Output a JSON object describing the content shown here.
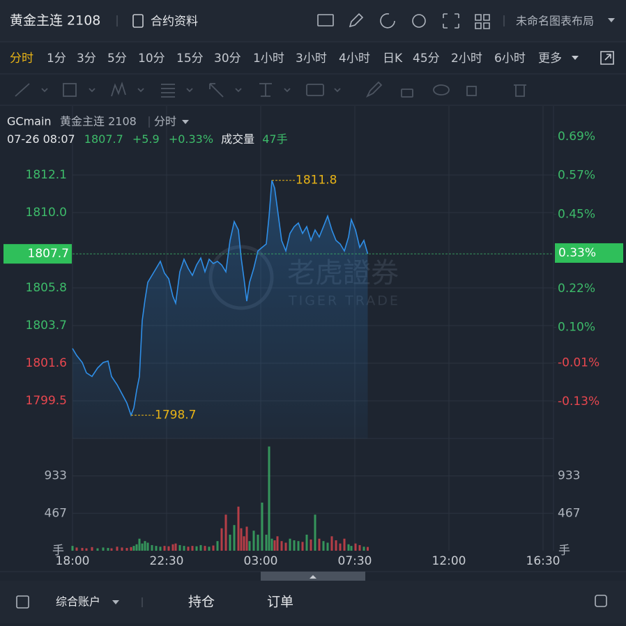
{
  "header": {
    "title": "黄金主连 2108",
    "contract_info": "合约资料",
    "layout_name": "未命名图表布局"
  },
  "periods": {
    "items": [
      "分时",
      "1分",
      "3分",
      "5分",
      "10分",
      "15分",
      "30分",
      "1小时",
      "3小时",
      "4小时",
      "日K",
      "45分",
      "2小时",
      "6小时",
      "更多"
    ],
    "active": 0
  },
  "chart_data": {
    "type": "line",
    "symbol": "GCmain",
    "name": "黄金主连 2108",
    "mode": "分时",
    "quote": {
      "time": "07-26 08:07",
      "last": 1807.7,
      "change": {
        "value": 5.9,
        "label": "+5.9"
      },
      "change_pct": "+0.33%",
      "volume_label": "成交量",
      "volume": "47手"
    },
    "current_pct": {
      "value": 0.33,
      "label": "0.33%"
    },
    "watermark": {
      "cn": "老虎證券",
      "en": "TIGER TRADE"
    },
    "x": [
      0,
      12,
      28,
      40,
      56,
      72,
      88,
      102,
      112,
      128,
      142,
      156,
      168,
      176,
      184,
      192,
      200,
      208,
      216,
      228,
      240,
      252,
      264,
      276,
      288,
      296,
      308,
      320,
      332,
      344,
      356,
      368,
      380,
      392,
      404,
      416,
      428,
      440,
      452,
      464,
      476,
      484,
      492,
      500,
      508,
      520,
      532,
      544,
      556,
      564,
      572,
      580,
      588,
      600,
      612,
      624,
      636,
      648,
      660,
      672,
      684,
      696,
      708,
      720,
      732,
      744,
      756,
      768,
      780,
      792,
      800,
      812,
      824,
      836,
      847
    ],
    "xlim": [
      0,
      1380
    ],
    "xticks": [
      {
        "value": 0,
        "label": "18:00"
      },
      {
        "value": 270,
        "label": "22:30"
      },
      {
        "value": 540,
        "label": "03:00"
      },
      {
        "value": 810,
        "label": "07:30"
      },
      {
        "value": 1080,
        "label": "12:00"
      },
      {
        "value": 1350,
        "label": "16:30"
      }
    ],
    "series": [
      {
        "name": "黄金主连 2108",
        "color": "#2f8fe8",
        "values": [
          1802.42,
          1802.03,
          1801.64,
          1801.06,
          1800.86,
          1801.33,
          1801.64,
          1801.72,
          1800.86,
          1800.4,
          1799.89,
          1799.38,
          1798.7,
          1799.11,
          1800.08,
          1800.86,
          1803.97,
          1805.14,
          1806.11,
          1806.5,
          1806.89,
          1807.28,
          1806.62,
          1806.31,
          1805.33,
          1804.95,
          1806.7,
          1807.4,
          1806.89,
          1806.5,
          1807.08,
          1807.47,
          1806.7,
          1807.4,
          1807.16,
          1807.28,
          1807.08,
          1806.7,
          1808.45,
          1809.5,
          1809.03,
          1807.47,
          1806.31,
          1805.06,
          1806.11,
          1806.89,
          1807.86,
          1808.06,
          1808.25,
          1809.81,
          1811.8,
          1811.36,
          1810.2,
          1808.45,
          1807.86,
          1808.84,
          1809.22,
          1809.42,
          1808.84,
          1809.22,
          1808.45,
          1809.03,
          1808.64,
          1809.22,
          1809.81,
          1809.03,
          1808.45,
          1808.25,
          1807.86,
          1808.64,
          1809.61,
          1809.03,
          1808.06,
          1808.45,
          1807.7
        ]
      }
    ],
    "ylim": [
      1797.4,
      1814.2
    ],
    "yticks": [
      1799.5,
      1801.6,
      1803.7,
      1805.8,
      {
        "value": 1810,
        "label": "1810.0"
      },
      1812.1
    ],
    "y2lim": [
      -0.244,
      0.688
    ],
    "y2ticks": [
      {
        "value": -0.13,
        "label": "-0.13%"
      },
      {
        "value": -0.01,
        "label": "-0.01%"
      },
      {
        "value": 0.1,
        "label": "0.10%"
      },
      {
        "value": 0.22,
        "label": "0.22%"
      },
      {
        "value": 0.45,
        "label": "0.45%"
      },
      {
        "value": 0.57,
        "label": "0.57%"
      },
      {
        "value": 0.69,
        "label": "0.69%"
      }
    ],
    "up_color": "#3dbb6a",
    "down_color": "#e8474f",
    "high": {
      "x": 572,
      "value": 1811.8
    },
    "low": {
      "x": 168,
      "value": 1798.7
    },
    "volume": {
      "unit": "手",
      "ylim": [
        0,
        1400
      ],
      "yticks": [
        467,
        933
      ],
      "values": [
        60,
        40,
        35,
        30,
        45,
        30,
        40,
        35,
        30,
        50,
        40,
        35,
        45,
        60,
        80,
        150,
        90,
        120,
        100,
        70,
        60,
        50,
        60,
        55,
        80,
        90,
        70,
        60,
        50,
        60,
        55,
        70,
        60,
        50,
        65,
        120,
        280,
        450,
        200,
        320,
        550,
        280,
        180,
        300,
        120,
        250,
        200,
        600,
        200,
        1300,
        150,
        130,
        180,
        120,
        100,
        150,
        130,
        120,
        110,
        200,
        140,
        450,
        150,
        120,
        100,
        180,
        130,
        90,
        150,
        80,
        60,
        90,
        70,
        50,
        47
      ]
    }
  },
  "footer": {
    "account": "综合账户",
    "positions": "持仓",
    "orders": "订单"
  }
}
